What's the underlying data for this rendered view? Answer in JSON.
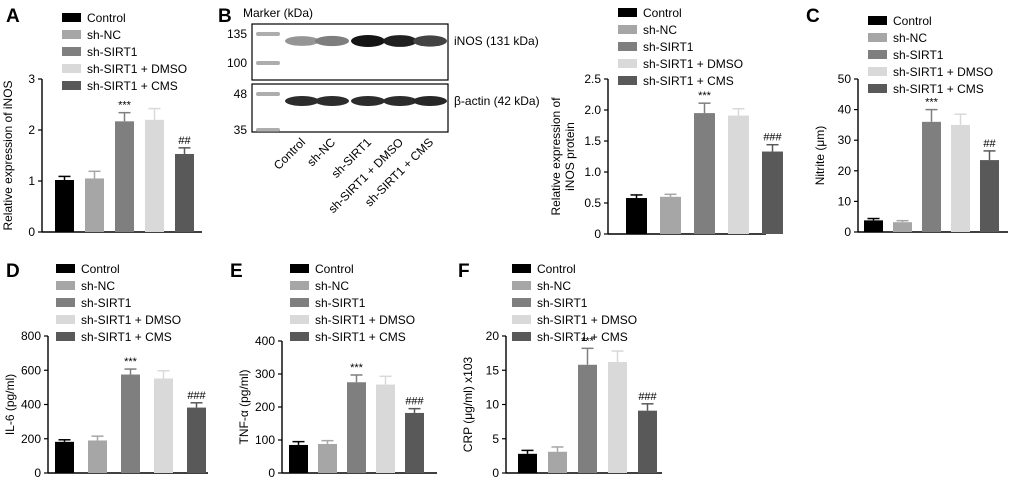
{
  "colors": {
    "Control": "#000000",
    "sh-NC": "#a6a6a6",
    "sh-SIRT1": "#7f7f7f",
    "sh-SIRT1 + DMSO": "#d9d9d9",
    "sh-SIRT1 + CMS": "#595959"
  },
  "groups": [
    "Control",
    "sh-NC",
    "sh-SIRT1",
    "sh-SIRT1 + DMSO",
    "sh-SIRT1 + CMS"
  ],
  "blot": {
    "marker_label": "Marker (kDa)",
    "markers_top": [
      "135",
      "100"
    ],
    "markers_bottom": [
      "48",
      "35"
    ],
    "band_top_label": "iNOS (131 kDa)",
    "band_bottom_label": "β-actin (42 kDa)",
    "lanes": [
      "Control",
      "sh-NC",
      "sh-SIRT1",
      "sh-SIRT1 + DMSO",
      "sh-SIRT1 + CMS"
    ],
    "band_top_intensity": [
      0.45,
      0.55,
      1.0,
      0.95,
      0.8
    ],
    "band_bottom_intensity": [
      0.9,
      0.9,
      0.9,
      0.9,
      0.92
    ]
  },
  "chart_data": [
    {
      "panel": "A",
      "type": "bar",
      "categories": [
        "Control",
        "sh-NC",
        "sh-SIRT1",
        "sh-SIRT1 + DMSO",
        "sh-SIRT1 + CMS"
      ],
      "values": [
        1.02,
        1.05,
        2.17,
        2.2,
        1.53
      ],
      "errors": [
        0.07,
        0.14,
        0.17,
        0.22,
        0.12
      ],
      "annotations": [
        "",
        "",
        "***",
        "",
        "##"
      ],
      "ylabel": "Relative expression of iNOS",
      "ylim": [
        0,
        3
      ],
      "yticks": [
        "0",
        "1",
        "2",
        "3"
      ]
    },
    {
      "panel": "B",
      "type": "bar",
      "categories": [
        "Control",
        "sh-NC",
        "sh-SIRT1",
        "sh-SIRT1 + DMSO",
        "sh-SIRT1 + CMS"
      ],
      "values": [
        0.58,
        0.6,
        1.95,
        1.91,
        1.33
      ],
      "errors": [
        0.05,
        0.04,
        0.16,
        0.11,
        0.11
      ],
      "annotations": [
        "",
        "",
        "***",
        "",
        "###"
      ],
      "ylabel": [
        "Relative expression of",
        "iNOS protein"
      ],
      "ylim": [
        0,
        2.5
      ],
      "yticks": [
        "0",
        "0.5",
        "1.0",
        "1.5",
        "2.0",
        "2.5"
      ]
    },
    {
      "panel": "C",
      "type": "bar",
      "categories": [
        "Control",
        "sh-NC",
        "sh-SIRT1",
        "sh-SIRT1 + DMSO",
        "sh-SIRT1 + CMS"
      ],
      "values": [
        3.8,
        3.2,
        36.0,
        35.0,
        23.5
      ],
      "errors": [
        0.6,
        0.5,
        4.0,
        3.5,
        3.0
      ],
      "annotations": [
        "",
        "",
        "***",
        "",
        "##"
      ],
      "ylabel": "Nitrite (μm)",
      "ylim": [
        0,
        50
      ],
      "yticks": [
        "0",
        "10",
        "20",
        "30",
        "40",
        "50"
      ]
    },
    {
      "panel": "D",
      "type": "bar",
      "categories": [
        "Control",
        "sh-NC",
        "sh-SIRT1",
        "sh-SIRT1 + DMSO",
        "sh-SIRT1 + CMS"
      ],
      "values": [
        182,
        190,
        575,
        552,
        382
      ],
      "errors": [
        12,
        25,
        32,
        45,
        28
      ],
      "annotations": [
        "",
        "",
        "***",
        "",
        "###"
      ],
      "ylabel": "IL-6 (pg/ml)",
      "ylim": [
        0,
        800
      ],
      "yticks": [
        "0",
        "200",
        "400",
        "600",
        "800"
      ]
    },
    {
      "panel": "E",
      "type": "bar",
      "categories": [
        "Control",
        "sh-NC",
        "sh-SIRT1",
        "sh-SIRT1 + DMSO",
        "sh-SIRT1 + CMS"
      ],
      "values": [
        85,
        88,
        275,
        268,
        182
      ],
      "errors": [
        10,
        10,
        22,
        25,
        13
      ],
      "annotations": [
        "",
        "",
        "***",
        "",
        "###"
      ],
      "ylabel": "TNF-α (pg/ml)",
      "ylim": [
        0,
        400
      ],
      "yticks": [
        "0",
        "100",
        "200",
        "300",
        "400"
      ]
    },
    {
      "panel": "F",
      "type": "bar",
      "categories": [
        "Control",
        "sh-NC",
        "sh-SIRT1",
        "sh-SIRT1 + DMSO",
        "sh-SIRT1 + CMS"
      ],
      "values": [
        2.8,
        3.1,
        15.8,
        16.2,
        9.1
      ],
      "errors": [
        0.5,
        0.7,
        2.4,
        1.6,
        1.0
      ],
      "annotations": [
        "",
        "",
        "***",
        "",
        "###"
      ],
      "ylabel": "CRP (μg/ml) x103",
      "ylim": [
        0,
        20
      ],
      "yticks": [
        "0",
        "5",
        "10",
        "15",
        "20"
      ]
    }
  ]
}
